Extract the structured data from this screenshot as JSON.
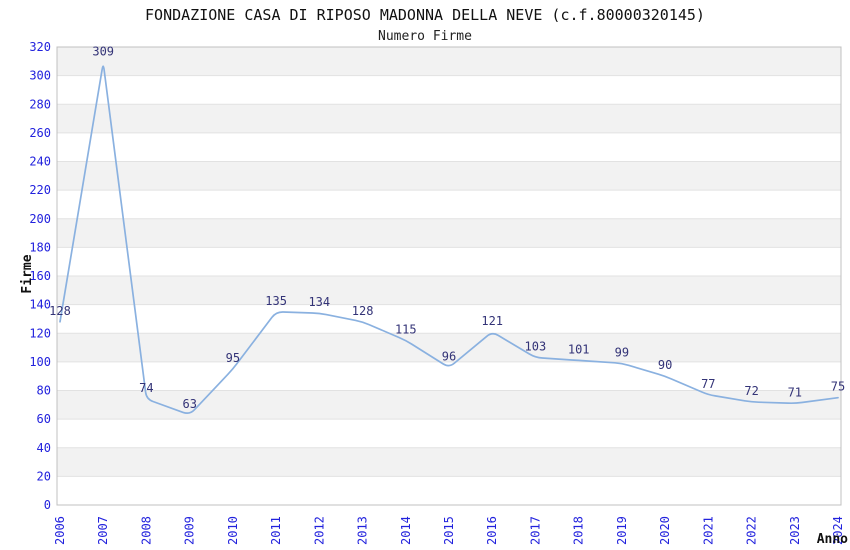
{
  "chart_data": {
    "type": "line",
    "title": "FONDAZIONE CASA DI RIPOSO MADONNA DELLA NEVE (c.f.80000320145)",
    "subtitle": "Numero Firme",
    "xlabel": "Anno",
    "ylabel": "Firme",
    "categories": [
      "2006",
      "2007",
      "2008",
      "2009",
      "2010",
      "2011",
      "2012",
      "2013",
      "2014",
      "2015",
      "2016",
      "2017",
      "2018",
      "2019",
      "2020",
      "2021",
      "2022",
      "2023",
      "2024"
    ],
    "values": [
      128,
      309,
      74,
      63,
      95,
      135,
      134,
      128,
      115,
      96,
      121,
      103,
      101,
      99,
      90,
      77,
      72,
      71,
      75
    ],
    "ylim": [
      0,
      320
    ],
    "ytick_step": 20,
    "grid": "alternating-horizontal-bands",
    "legend": "none",
    "point_labels_visible": true,
    "colors": {
      "line": "#8ab1e0",
      "tick_label": "#2222dd",
      "point_label": "#333377",
      "band_fill": "#f2f2f2",
      "gridline": "#e2e2e2",
      "axis_border": "#c0c0c0",
      "title_text": "#111111"
    }
  }
}
